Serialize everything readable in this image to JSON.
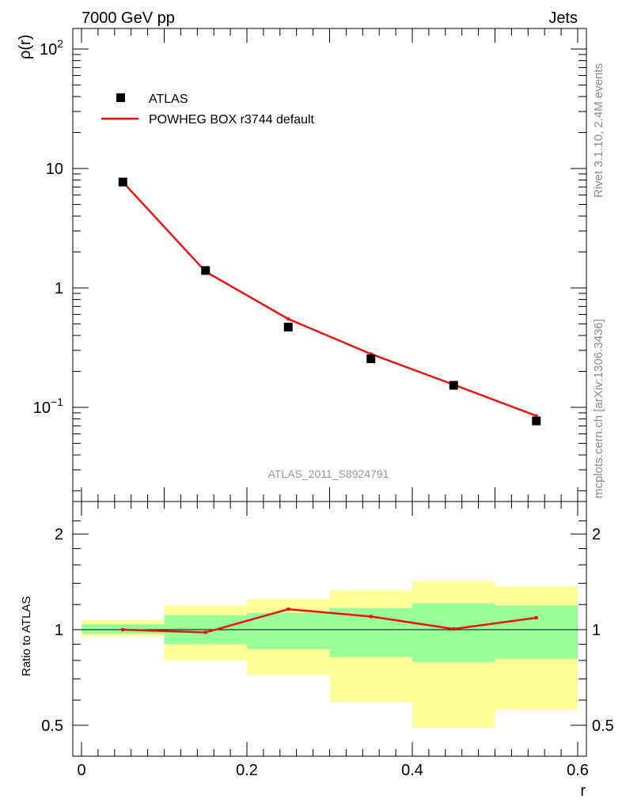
{
  "header": {
    "left": "7000 GeV pp",
    "right": "Jets"
  },
  "side": {
    "rivet": "Rivet 3.1.10,  2.4M events",
    "mcplots": "mcplots.cern.ch [arXiv:1306.3436]"
  },
  "watermark": "ATLAS_2011_S8924791",
  "colors": {
    "data": "#000000",
    "mc": "#ee1111",
    "band_inner": "#99ff99",
    "band_outer": "#ffff99"
  },
  "chart_data": [
    {
      "type": "scatter",
      "scale": "log",
      "ylabel": "ρ(r)",
      "xlim": [
        0,
        0.6
      ],
      "ylim": [
        0.02,
        140
      ],
      "y_ticks": [
        {
          "v": 100,
          "base": "10",
          "exp": "2"
        },
        {
          "v": 10,
          "label": "10"
        },
        {
          "v": 1,
          "label": "1"
        },
        {
          "v": 0.1,
          "base": "10",
          "exp": "−1"
        }
      ],
      "legend": [
        {
          "label": "ATLAS",
          "kind": "marker"
        },
        {
          "label": "POWHEG BOX r3744 default",
          "kind": "line"
        }
      ],
      "series": [
        {
          "name": "ATLAS",
          "x": [
            0.05,
            0.15,
            0.25,
            0.35,
            0.45,
            0.55
          ],
          "values": [
            7.7,
            1.4,
            0.47,
            0.255,
            0.153,
            0.077
          ]
        },
        {
          "name": "POWHEG BOX r3744 default",
          "x": [
            0.05,
            0.15,
            0.25,
            0.35,
            0.45,
            0.55
          ],
          "values": [
            7.7,
            1.37,
            0.55,
            0.28,
            0.155,
            0.085
          ]
        }
      ]
    },
    {
      "type": "line",
      "ylabel": "Ratio to ATLAS",
      "xlabel": "r",
      "xlim": [
        0,
        0.6
      ],
      "ylim": [
        0.42,
        2.35
      ],
      "x_ticks": [
        {
          "v": 0,
          "label": "0"
        },
        {
          "v": 0.2,
          "label": "0.2"
        },
        {
          "v": 0.4,
          "label": "0.4"
        },
        {
          "v": 0.6,
          "label": "0.6"
        }
      ],
      "y_ticks": [
        {
          "v": 0.5,
          "label": "0.5"
        },
        {
          "v": 1,
          "label": "1"
        },
        {
          "v": 2,
          "label": "2"
        }
      ],
      "bands": [
        {
          "x0": 0.0,
          "x1": 0.1,
          "inner": [
            0.97,
            1.04
          ],
          "outer": [
            0.95,
            1.07
          ]
        },
        {
          "x0": 0.1,
          "x1": 0.2,
          "inner": [
            0.9,
            1.11
          ],
          "outer": [
            0.8,
            1.19
          ]
        },
        {
          "x0": 0.2,
          "x1": 0.3,
          "inner": [
            0.87,
            1.13
          ],
          "outer": [
            0.72,
            1.25
          ]
        },
        {
          "x0": 0.3,
          "x1": 0.4,
          "inner": [
            0.82,
            1.17
          ],
          "outer": [
            0.59,
            1.33
          ]
        },
        {
          "x0": 0.4,
          "x1": 0.5,
          "inner": [
            0.79,
            1.21
          ],
          "outer": [
            0.49,
            1.42
          ]
        },
        {
          "x0": 0.5,
          "x1": 0.6,
          "inner": [
            0.81,
            1.19
          ],
          "outer": [
            0.56,
            1.37
          ]
        }
      ],
      "series": [
        {
          "name": "POWHEG BOX r3744 default",
          "x": [
            0.05,
            0.15,
            0.25,
            0.35,
            0.45,
            0.55
          ],
          "values": [
            1.0,
            0.98,
            1.16,
            1.1,
            1.005,
            1.09
          ]
        }
      ]
    }
  ]
}
